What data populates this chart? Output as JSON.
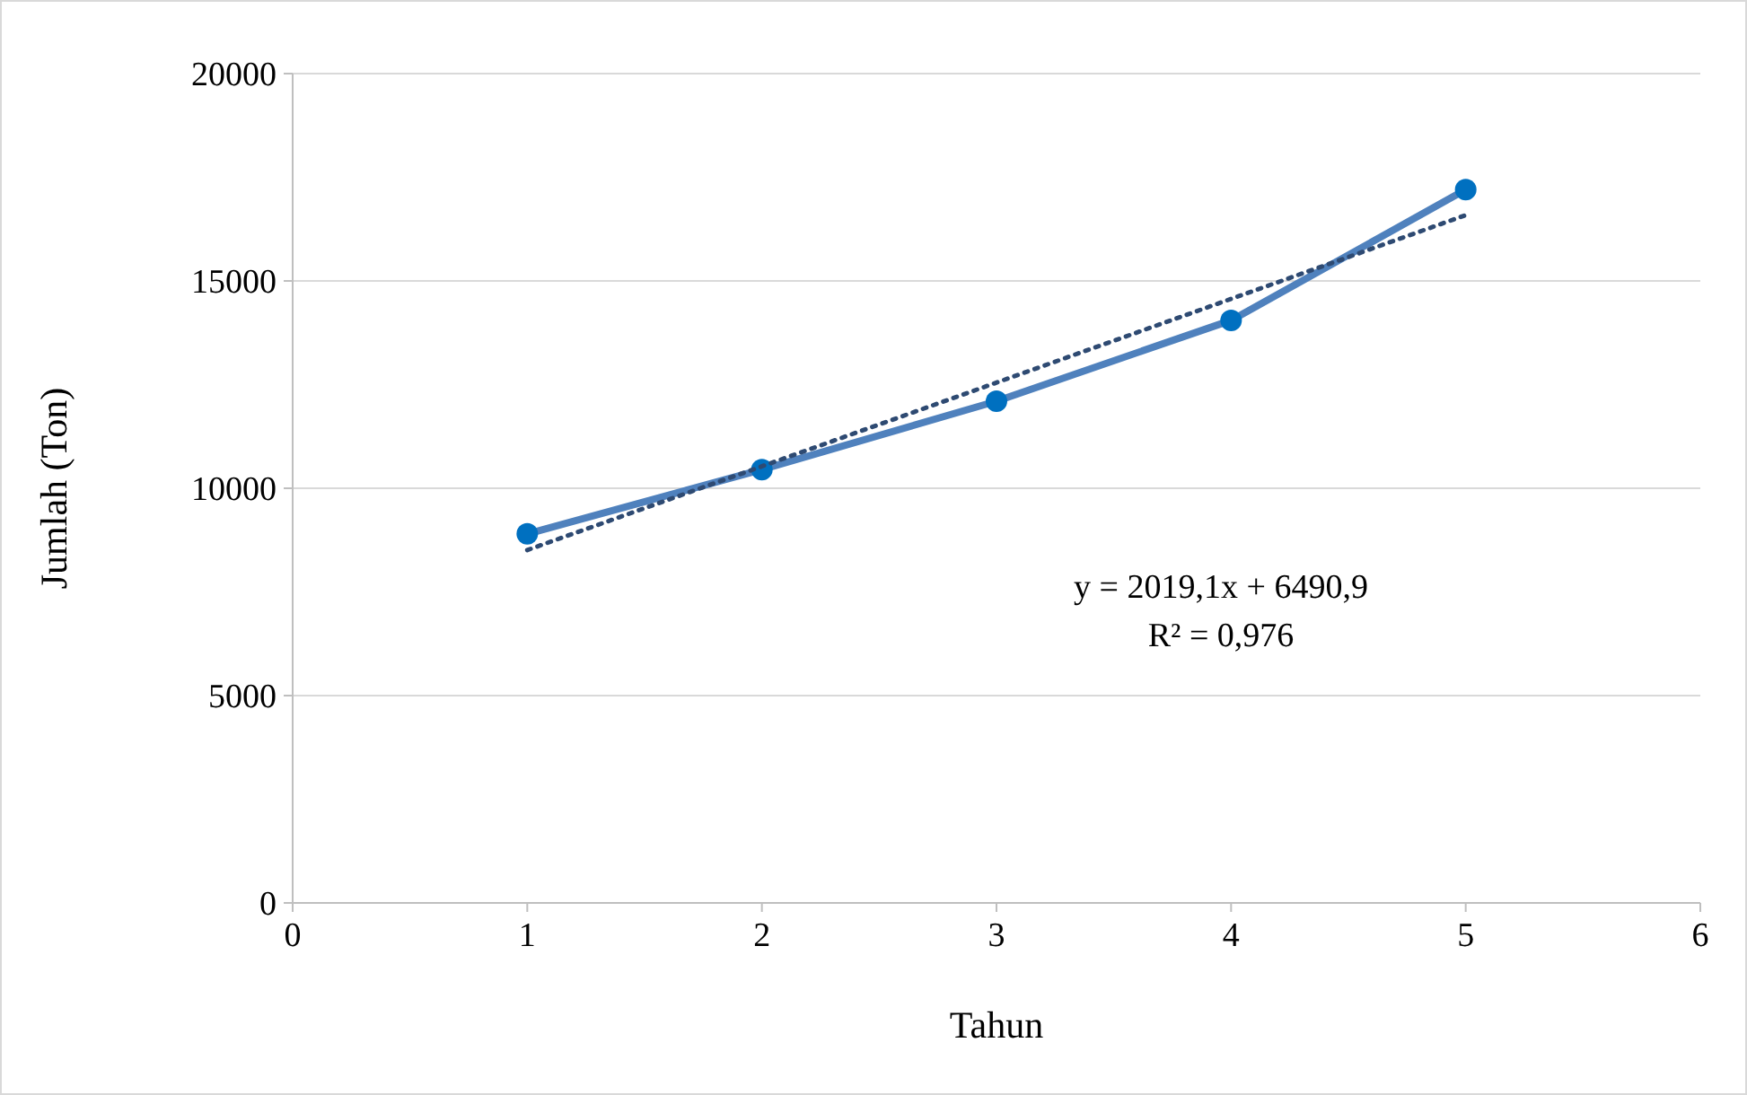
{
  "chart_data": {
    "type": "line",
    "xlabel": "Tahun",
    "ylabel": "Jumlah (Ton)",
    "xlim": [
      0,
      6
    ],
    "xticks": [
      0,
      1,
      2,
      3,
      4,
      5,
      6
    ],
    "ylim": [
      0,
      20000
    ],
    "yticks": [
      0,
      5000,
      10000,
      15000,
      20000
    ],
    "grid": "y",
    "x": [
      1,
      2,
      3,
      4,
      5
    ],
    "series": [
      {
        "color": "#4f81bd",
        "values": [
          8900,
          10450,
          12100,
          14050,
          17200
        ],
        "marker": "circle",
        "line_style": "solid"
      },
      {
        "type": "line",
        "color": "#2e4a72",
        "x": [
          1,
          5
        ],
        "values": [
          8510,
          16586
        ],
        "marker": "none",
        "line_style": "dotted"
      }
    ],
    "annotations": [
      "y = 2019,1x + 6490,9",
      "R² = 0,976"
    ]
  }
}
